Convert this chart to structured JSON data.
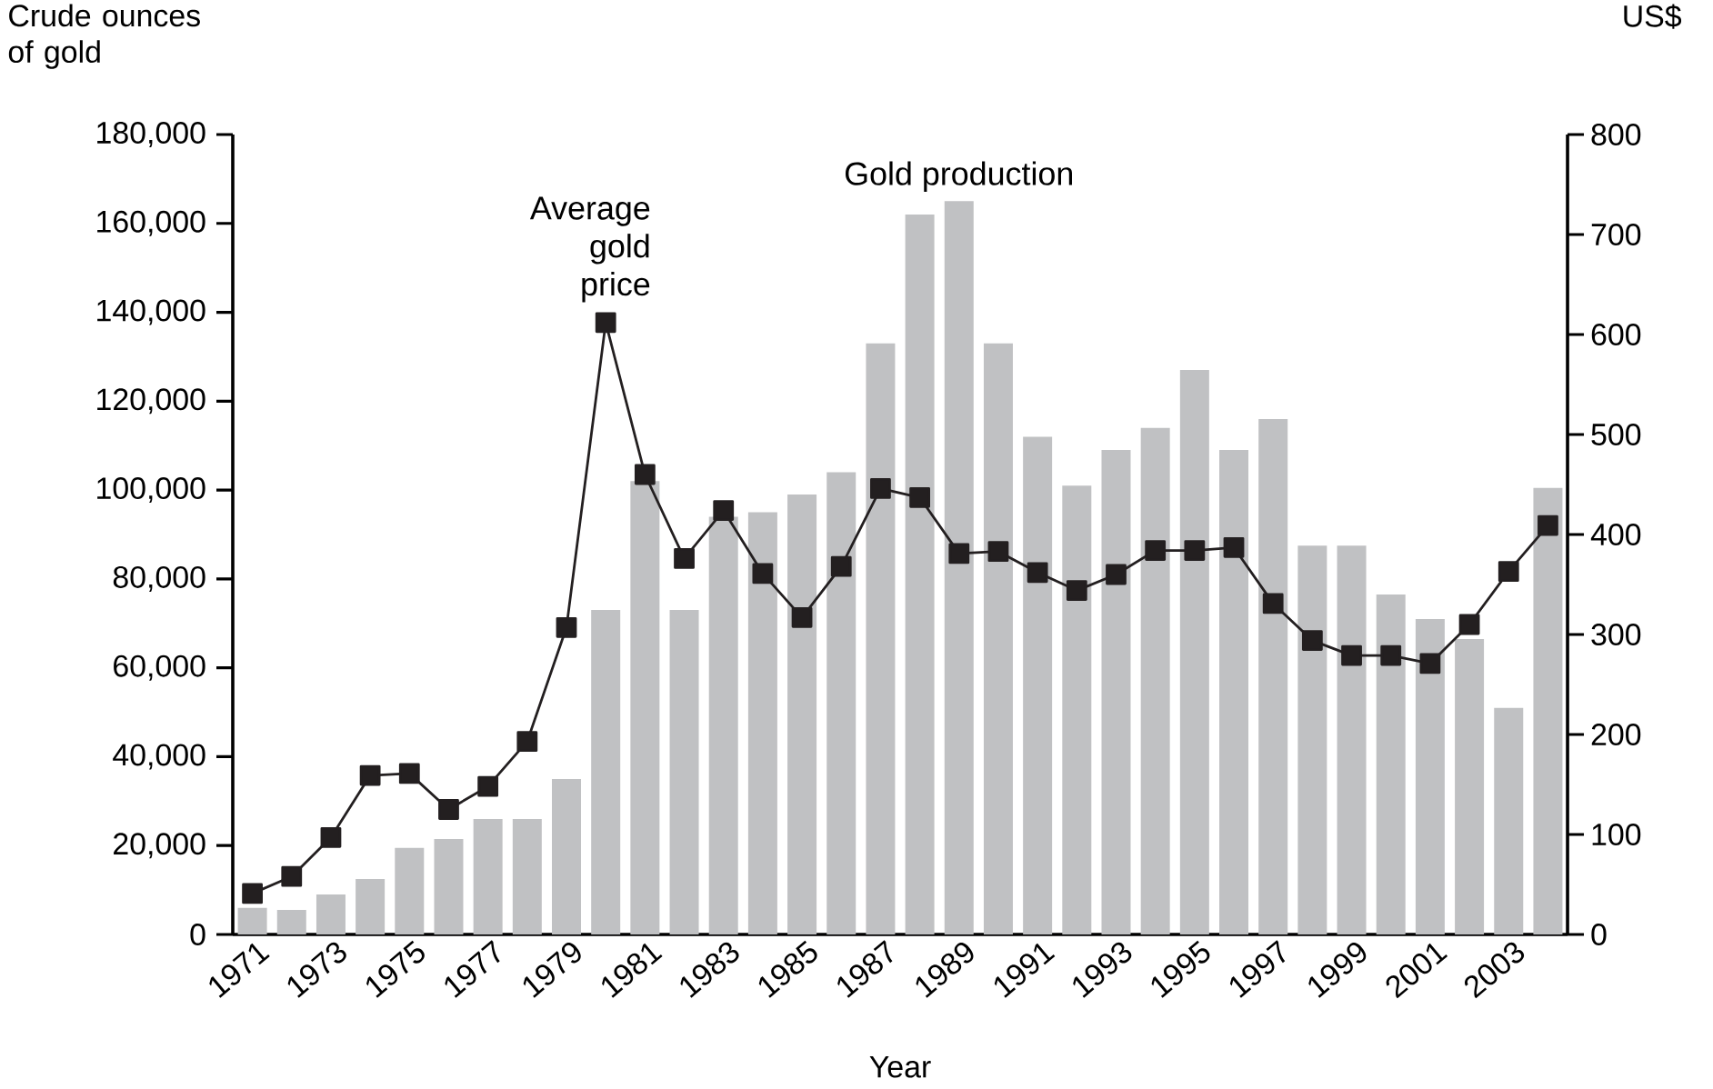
{
  "chart_data": {
    "type": "bar",
    "xlabel": "Year",
    "ylabel": "Crude ounces of gold",
    "y2label": "US$",
    "categories": [
      "1971",
      null,
      "1973",
      null,
      "1975",
      null,
      "1977",
      null,
      "1979",
      null,
      "1981",
      null,
      "1983",
      null,
      "1985",
      null,
      "1987",
      null,
      "1989",
      null,
      "1991",
      null,
      "1993",
      null,
      "1995",
      null,
      "1997",
      null,
      "1999",
      null,
      "2001",
      null,
      "2003",
      null
    ],
    "series": [
      {
        "name": "Gold production",
        "color": "#c0c1c3",
        "values": [
          6000,
          5500,
          9000,
          12500,
          19500,
          21500,
          26000,
          26000,
          35000,
          73000,
          102000,
          73000,
          94000,
          95000,
          99000,
          104000,
          133000,
          162000,
          165000,
          133000,
          112000,
          101000,
          109000,
          114000,
          127000,
          109000,
          116000,
          87500,
          87500,
          76500,
          71000,
          66500,
          51000,
          100500
        ]
      },
      {
        "name": "Average gold price",
        "type": "line",
        "axis": "y2",
        "color": "#231f20",
        "values": [
          41,
          58,
          97,
          159,
          161,
          125,
          148,
          193,
          307,
          612,
          460,
          376,
          424,
          361,
          317,
          368,
          446,
          437,
          381,
          383,
          362,
          344,
          360,
          384,
          384,
          387,
          331,
          294,
          279,
          279,
          271,
          310,
          363,
          409
        ]
      }
    ],
    "ylim": [
      0,
      180000
    ],
    "yticks": [
      {
        "value": 0,
        "label": "0"
      },
      {
        "value": 20000,
        "label": "20,000"
      },
      {
        "value": 40000,
        "label": "40,000"
      },
      {
        "value": 60000,
        "label": "60,000"
      },
      {
        "value": 80000,
        "label": "80,000"
      },
      {
        "value": 100000,
        "label": "100,000"
      },
      {
        "value": 120000,
        "label": "120,000"
      },
      {
        "value": 140000,
        "label": "140,000"
      },
      {
        "value": 160000,
        "label": "160,000"
      },
      {
        "value": 180000,
        "label": "180,000"
      }
    ],
    "y2lim": [
      0,
      800
    ],
    "y2ticks": [
      0,
      100,
      200,
      300,
      400,
      500,
      600,
      700,
      800
    ],
    "marker": "square",
    "grid": false
  }
}
